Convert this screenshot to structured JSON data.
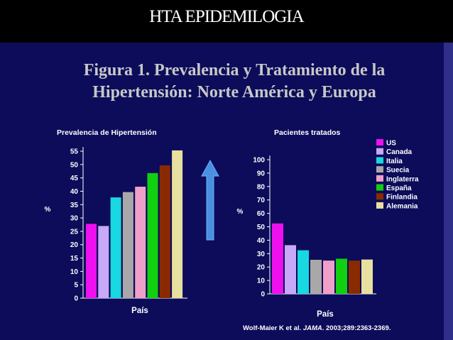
{
  "slide": {
    "title": "HTA EPIDEMILOGIA",
    "figure_title_line1": "Figura 1.  Prevalencia y Tratamiento de la",
    "figure_title_line2": "Hipertensión: Norte América y Europa",
    "citation_prefix": "Wolf-Maier K et al. ",
    "citation_journal": "JAMA",
    "citation_suffix": ". 2003;289:2363-2369.",
    "arrow_icon": "up-arrow-icon"
  },
  "colors": {
    "background": "#0c0c5a",
    "text": "#ffffff",
    "arrow": "#4a8fe0"
  },
  "chart_data": [
    {
      "type": "bar",
      "title": "Prevalencia de Hipertensión",
      "xlabel": "País",
      "ylabel": "%",
      "ylim": [
        0,
        55
      ],
      "yticks": [
        0,
        5,
        10,
        15,
        20,
        25,
        30,
        35,
        40,
        45,
        50,
        55
      ],
      "categories": [
        "US",
        "Canada",
        "Italia",
        "Suecia",
        "Inglaterra",
        "España",
        "Finlandia",
        "Alemania"
      ],
      "values": [
        27.8,
        27.0,
        37.7,
        39.7,
        41.7,
        46.8,
        49.7,
        55.3
      ],
      "colors": [
        "#ee10ee",
        "#c8a8f8",
        "#18d8e0",
        "#a8a8a8",
        "#f0a0c8",
        "#10d010",
        "#8a2a00",
        "#e8e0a0"
      ]
    },
    {
      "type": "bar",
      "title": "Pacientes tratados",
      "xlabel": "País",
      "ylabel": "%",
      "ylim": [
        0,
        100
      ],
      "yticks": [
        0,
        10,
        20,
        30,
        40,
        50,
        60,
        70,
        80,
        90,
        100
      ],
      "categories": [
        "US",
        "Canada",
        "Italia",
        "Suecia",
        "Inglaterra",
        "España",
        "Finlandia",
        "Alemania"
      ],
      "values": [
        52.5,
        36.3,
        32.5,
        25.4,
        24.8,
        26.2,
        24.8,
        25.6
      ],
      "colors": [
        "#ee10ee",
        "#c8a8f8",
        "#18d8e0",
        "#a8a8a8",
        "#f0a0c8",
        "#10d010",
        "#8a2a00",
        "#e8e0a0"
      ],
      "legend_position": "top-right"
    }
  ]
}
